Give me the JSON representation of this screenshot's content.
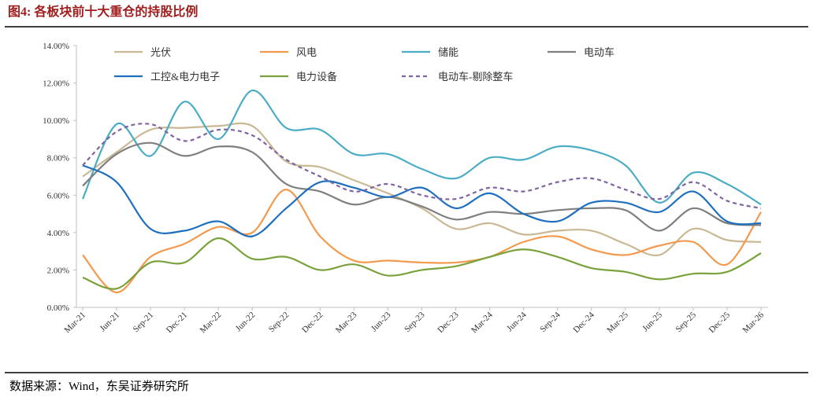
{
  "title": "图4: 各板块前十大重仓的持股比例",
  "source": "数据来源：Wind，东吴证券研究所",
  "chart_data": {
    "type": "line",
    "smooth": true,
    "categories": [
      "Mar-21",
      "Jun-21",
      "Sep-21",
      "Dec-21",
      "Mar-22",
      "Jun-22",
      "Sep-22",
      "Dec-22",
      "Mar-23",
      "Jun-23",
      "Sep-23",
      "Dec-23",
      "Mar-24",
      "Jun-24",
      "Sep-24",
      "Dec-24",
      "Mar-25",
      "Jun-25",
      "Sep-25",
      "Dec-25",
      "Mar-26"
    ],
    "ylim": [
      0,
      14
    ],
    "yticks": [
      {
        "value": 0,
        "label": "0.00%"
      },
      {
        "value": 2,
        "label": "2.00%"
      },
      {
        "value": 4,
        "label": "4.00%"
      },
      {
        "value": 6,
        "label": "6.00%"
      },
      {
        "value": 8,
        "label": "8.00%"
      },
      {
        "value": 10,
        "label": "10.00%"
      },
      {
        "value": 12,
        "label": "12.00%"
      },
      {
        "value": 14,
        "label": "14.00%"
      }
    ],
    "series": [
      {
        "name": "光伏",
        "color": "#c9b893",
        "values": [
          7.0,
          8.3,
          9.5,
          9.6,
          9.7,
          9.7,
          7.8,
          7.5,
          6.8,
          6.1,
          5.3,
          4.2,
          4.5,
          3.9,
          4.1,
          4.1,
          3.4,
          2.8,
          4.2,
          3.6,
          3.5
        ]
      },
      {
        "name": "风电",
        "color": "#f39a4f",
        "values": [
          2.8,
          0.8,
          2.7,
          3.4,
          4.3,
          4.0,
          6.3,
          3.8,
          2.5,
          2.5,
          2.4,
          2.4,
          2.7,
          3.5,
          3.8,
          3.1,
          2.8,
          3.3,
          3.5,
          2.3,
          5.1
        ]
      },
      {
        "name": "储能",
        "color": "#4bacc6",
        "values": [
          5.8,
          9.8,
          8.1,
          11.0,
          9.0,
          11.6,
          9.6,
          9.5,
          8.2,
          8.2,
          7.4,
          6.9,
          8.0,
          7.9,
          8.6,
          8.4,
          7.6,
          5.6,
          7.2,
          6.6,
          5.5
        ]
      },
      {
        "name": "电动车",
        "color": "#7f7f7f",
        "values": [
          6.5,
          8.2,
          8.8,
          8.1,
          8.6,
          8.3,
          6.6,
          6.2,
          5.5,
          5.9,
          5.4,
          4.7,
          5.1,
          5.0,
          5.2,
          5.3,
          5.2,
          4.1,
          5.3,
          4.5,
          4.4
        ]
      },
      {
        "name": "工控&电力电子",
        "color": "#1f6fbf",
        "values": [
          7.6,
          6.7,
          4.2,
          4.1,
          4.6,
          3.8,
          5.3,
          6.7,
          6.4,
          5.9,
          6.4,
          5.3,
          6.1,
          5.0,
          4.6,
          5.6,
          5.6,
          5.1,
          6.2,
          4.6,
          4.5
        ]
      },
      {
        "name": "电力设备",
        "color": "#7aa23c",
        "values": [
          1.6,
          1.0,
          2.4,
          2.4,
          3.7,
          2.6,
          2.7,
          2.0,
          2.3,
          1.7,
          2.0,
          2.2,
          2.7,
          3.1,
          2.7,
          2.1,
          1.9,
          1.5,
          1.8,
          1.9,
          2.9
        ]
      },
      {
        "name": "电动车-剔除整车",
        "color": "#8064a2",
        "dashed": true,
        "values": [
          7.6,
          9.4,
          9.8,
          8.9,
          9.5,
          9.2,
          7.9,
          7.0,
          6.2,
          6.6,
          6.0,
          5.8,
          6.4,
          6.2,
          6.7,
          6.9,
          6.3,
          5.8,
          6.7,
          5.7,
          5.3
        ]
      }
    ]
  }
}
